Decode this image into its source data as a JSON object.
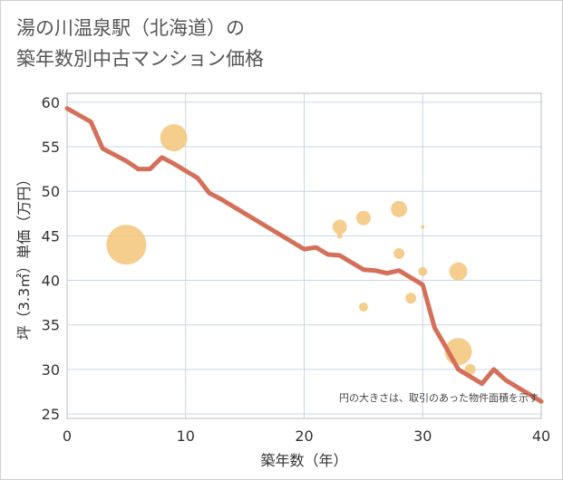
{
  "chart_data": {
    "type": "scatter",
    "title_line1": "湯の川温泉駅（北海道）の",
    "title_line2": "築年数別中古マンション価格",
    "xlabel": "築年数（年）",
    "ylabel": "坪（3.3㎡）単価（万円）",
    "xlim": [
      0,
      40
    ],
    "ylim": [
      24.5,
      61
    ],
    "xticks": [
      0,
      10,
      20,
      30,
      40
    ],
    "yticks": [
      25,
      30,
      35,
      40,
      45,
      50,
      55,
      60
    ],
    "note": "円の大きさは、取引のあった物件面積を示す",
    "colors": {
      "line": "#d4705a",
      "bubble": "#f3c57a",
      "grid": "#c8d6e6"
    },
    "scatter": [
      {
        "x": 5,
        "y": 44,
        "size": 22
      },
      {
        "x": 9,
        "y": 56,
        "size": 15
      },
      {
        "x": 23,
        "y": 46,
        "size": 8
      },
      {
        "x": 23,
        "y": 45,
        "size": 3
      },
      {
        "x": 25,
        "y": 47,
        "size": 8
      },
      {
        "x": 25,
        "y": 37,
        "size": 5
      },
      {
        "x": 28,
        "y": 48,
        "size": 9
      },
      {
        "x": 28,
        "y": 43,
        "size": 6
      },
      {
        "x": 29,
        "y": 38,
        "size": 6
      },
      {
        "x": 30,
        "y": 46,
        "size": 2
      },
      {
        "x": 30,
        "y": 41,
        "size": 5
      },
      {
        "x": 33,
        "y": 41,
        "size": 10
      },
      {
        "x": 33,
        "y": 32,
        "size": 15
      },
      {
        "x": 34,
        "y": 30,
        "size": 6
      }
    ],
    "line": {
      "x": [
        0,
        2,
        3,
        4,
        5,
        6,
        7,
        8,
        9,
        10,
        11,
        12,
        13,
        14,
        15,
        16,
        17,
        18,
        19,
        20,
        21,
        22,
        23,
        24,
        25,
        26,
        27,
        28,
        29,
        30,
        31,
        32,
        33,
        34,
        35,
        36,
        37,
        38,
        39,
        40
      ],
      "y": [
        59.3,
        57.8,
        54.8,
        54.1,
        53.4,
        52.5,
        52.5,
        53.8,
        53.1,
        52.3,
        51.5,
        49.8,
        49.1,
        48.3,
        47.5,
        46.7,
        45.9,
        45.1,
        44.3,
        43.5,
        43.7,
        42.9,
        42.8,
        42.0,
        41.2,
        41.1,
        40.8,
        41.1,
        40.3,
        39.5,
        34.7,
        32.4,
        30.0,
        29.2,
        28.4,
        30.0,
        28.8,
        28.0,
        27.2,
        26.4
      ]
    }
  }
}
